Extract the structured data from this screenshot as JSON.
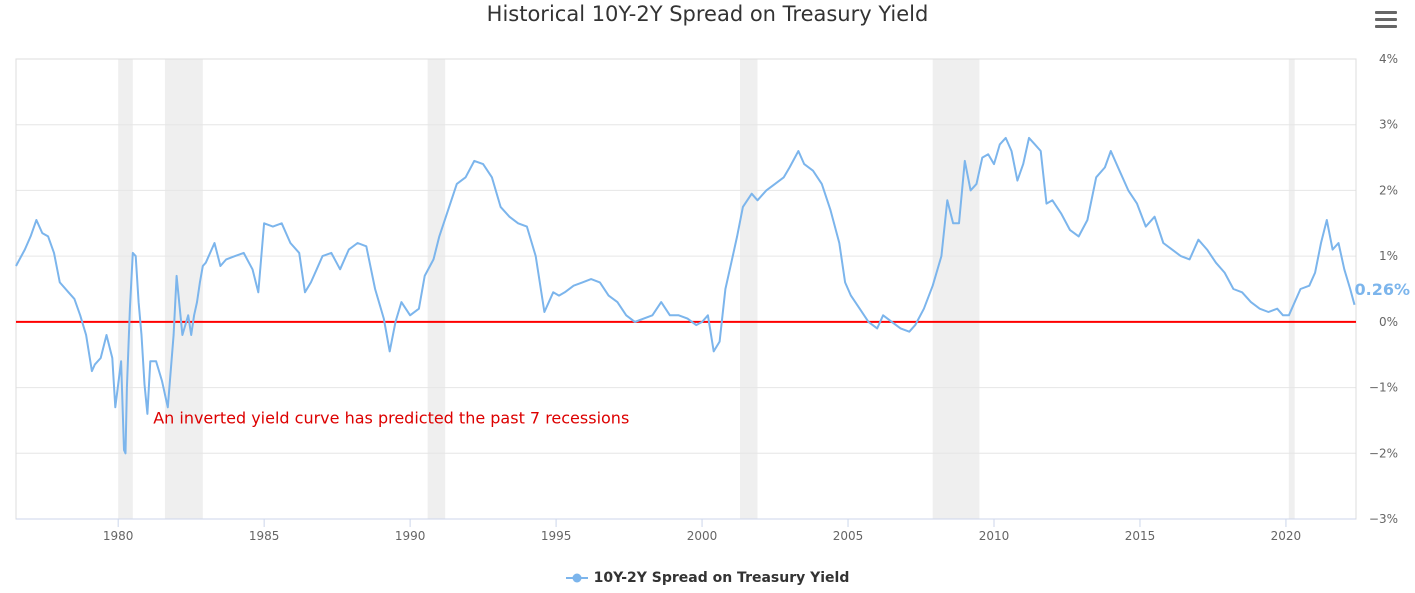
{
  "chart_data": {
    "type": "line",
    "title": "Historical 10Y-2Y Spread on Treasury Yield",
    "xlabel": "",
    "ylabel": "",
    "xlim": [
      1976.5,
      2022.4
    ],
    "ylim": [
      -3,
      4
    ],
    "x_ticks": [
      1980,
      1985,
      1990,
      1995,
      2000,
      2005,
      2010,
      2015,
      2020
    ],
    "x_tick_labels": [
      "1980",
      "1985",
      "1990",
      "1995",
      "2000",
      "2005",
      "2010",
      "2015",
      "2020"
    ],
    "y_ticks": [
      -3,
      -2,
      -1,
      0,
      1,
      2,
      3,
      4
    ],
    "y_tick_labels": [
      "−3%",
      "−2%",
      "−1%",
      "0%",
      "1%",
      "2%",
      "3%",
      "4%"
    ],
    "grid": true,
    "legend_position": "bottom-center",
    "series": [
      {
        "name": "10Y-2Y Spread on Treasury Yield",
        "color": "#7cb5ec",
        "x": [
          1976.5,
          1976.8,
          1977.0,
          1977.2,
          1977.4,
          1977.6,
          1977.8,
          1978.0,
          1978.3,
          1978.5,
          1978.7,
          1978.9,
          1979.1,
          1979.2,
          1979.4,
          1979.6,
          1979.8,
          1979.9,
          1980.0,
          1980.1,
          1980.2,
          1980.25,
          1980.3,
          1980.4,
          1980.5,
          1980.6,
          1980.7,
          1980.8,
          1980.9,
          1981.0,
          1981.1,
          1981.3,
          1981.5,
          1981.7,
          1981.9,
          1982.0,
          1982.2,
          1982.4,
          1982.5,
          1982.6,
          1982.7,
          1982.8,
          1982.9,
          1983.0,
          1983.3,
          1983.5,
          1983.7,
          1984.0,
          1984.3,
          1984.6,
          1984.8,
          1985.0,
          1985.3,
          1985.6,
          1985.9,
          1986.2,
          1986.4,
          1986.6,
          1986.8,
          1987.0,
          1987.3,
          1987.6,
          1987.9,
          1988.2,
          1988.5,
          1988.8,
          1989.1,
          1989.3,
          1989.5,
          1989.7,
          1990.0,
          1990.3,
          1990.5,
          1990.8,
          1991.0,
          1991.3,
          1991.6,
          1991.9,
          1992.2,
          1992.5,
          1992.8,
          1993.1,
          1993.4,
          1993.7,
          1994.0,
          1994.3,
          1994.6,
          1994.9,
          1995.1,
          1995.3,
          1995.6,
          1995.9,
          1996.2,
          1996.5,
          1996.8,
          1997.1,
          1997.4,
          1997.7,
          1998.0,
          1998.3,
          1998.6,
          1998.9,
          1999.2,
          1999.5,
          1999.8,
          2000.0,
          2000.2,
          2000.4,
          2000.6,
          2000.8,
          2001.0,
          2001.2,
          2001.4,
          2001.7,
          2001.9,
          2002.2,
          2002.5,
          2002.8,
          2003.0,
          2003.3,
          2003.5,
          2003.8,
          2004.1,
          2004.4,
          2004.7,
          2004.9,
          2005.1,
          2005.4,
          2005.7,
          2006.0,
          2006.2,
          2006.5,
          2006.8,
          2007.1,
          2007.3,
          2007.6,
          2007.9,
          2008.2,
          2008.4,
          2008.6,
          2008.8,
          2009.0,
          2009.2,
          2009.4,
          2009.6,
          2009.8,
          2010.0,
          2010.2,
          2010.4,
          2010.6,
          2010.8,
          2011.0,
          2011.2,
          2011.4,
          2011.6,
          2011.8,
          2012.0,
          2012.3,
          2012.6,
          2012.9,
          2013.2,
          2013.5,
          2013.8,
          2014.0,
          2014.3,
          2014.6,
          2014.9,
          2015.2,
          2015.5,
          2015.8,
          2016.1,
          2016.4,
          2016.7,
          2017.0,
          2017.3,
          2017.6,
          2017.9,
          2018.2,
          2018.5,
          2018.8,
          2019.1,
          2019.4,
          2019.7,
          2019.9,
          2020.1,
          2020.3,
          2020.5,
          2020.8,
          2021.0,
          2021.2,
          2021.4,
          2021.6,
          2021.8,
          2022.0,
          2022.2,
          2022.35
        ],
        "y": [
          0.85,
          1.1,
          1.3,
          1.55,
          1.35,
          1.3,
          1.05,
          0.6,
          0.45,
          0.35,
          0.1,
          -0.2,
          -0.75,
          -0.65,
          -0.55,
          -0.2,
          -0.55,
          -1.3,
          -0.95,
          -0.6,
          -1.95,
          -2.0,
          -1.0,
          0.2,
          1.05,
          1.0,
          0.3,
          -0.2,
          -0.95,
          -1.4,
          -0.6,
          -0.6,
          -0.9,
          -1.3,
          -0.2,
          0.7,
          -0.2,
          0.1,
          -0.2,
          0.1,
          0.3,
          0.6,
          0.85,
          0.9,
          1.2,
          0.85,
          0.95,
          1.0,
          1.05,
          0.8,
          0.45,
          1.5,
          1.45,
          1.5,
          1.2,
          1.05,
          0.45,
          0.6,
          0.8,
          1.0,
          1.05,
          0.8,
          1.1,
          1.2,
          1.15,
          0.5,
          0.05,
          -0.45,
          0.0,
          0.3,
          0.1,
          0.2,
          0.7,
          0.95,
          1.3,
          1.7,
          2.1,
          2.2,
          2.45,
          2.4,
          2.2,
          1.75,
          1.6,
          1.5,
          1.45,
          1.0,
          0.15,
          0.45,
          0.4,
          0.45,
          0.55,
          0.6,
          0.65,
          0.6,
          0.4,
          0.3,
          0.1,
          0.0,
          0.05,
          0.1,
          0.3,
          0.1,
          0.1,
          0.05,
          -0.05,
          0.0,
          0.1,
          -0.45,
          -0.3,
          0.5,
          0.9,
          1.3,
          1.75,
          1.95,
          1.85,
          2.0,
          2.1,
          2.2,
          2.35,
          2.6,
          2.4,
          2.3,
          2.1,
          1.7,
          1.2,
          0.6,
          0.4,
          0.2,
          0.0,
          -0.1,
          0.1,
          0.0,
          -0.1,
          -0.15,
          -0.05,
          0.2,
          0.55,
          1.0,
          1.85,
          1.5,
          1.5,
          2.45,
          2.0,
          2.1,
          2.5,
          2.55,
          2.4,
          2.7,
          2.8,
          2.6,
          2.15,
          2.4,
          2.8,
          2.7,
          2.6,
          1.8,
          1.85,
          1.65,
          1.4,
          1.3,
          1.55,
          2.2,
          2.35,
          2.6,
          2.3,
          2.0,
          1.8,
          1.45,
          1.6,
          1.2,
          1.1,
          1.0,
          0.95,
          1.25,
          1.1,
          0.9,
          0.75,
          0.5,
          0.45,
          0.3,
          0.2,
          0.15,
          0.2,
          0.1,
          0.1,
          0.3,
          0.5,
          0.55,
          0.75,
          1.2,
          1.55,
          1.1,
          1.2,
          0.8,
          0.5,
          0.26
        ]
      }
    ],
    "recessions": [
      [
        1980.0,
        1980.5
      ],
      [
        1981.6,
        1982.9
      ],
      [
        1990.6,
        1991.2
      ],
      [
        2001.3,
        2001.9
      ],
      [
        2007.9,
        2009.5
      ],
      [
        2020.1,
        2020.3
      ]
    ],
    "threshold": {
      "value": 0,
      "color": "#ff0000"
    },
    "last_value_label": "0.26%",
    "annotation": {
      "text": "An inverted yield curve has predicted the past 7 recessions",
      "x": 1981.2,
      "y": -1.55,
      "color": "#dd0000"
    },
    "colors": {
      "line": "#7cb5ec",
      "recession_band": "#efefef",
      "zero_line": "#ff0000",
      "grid": "#e6e6e6"
    }
  }
}
